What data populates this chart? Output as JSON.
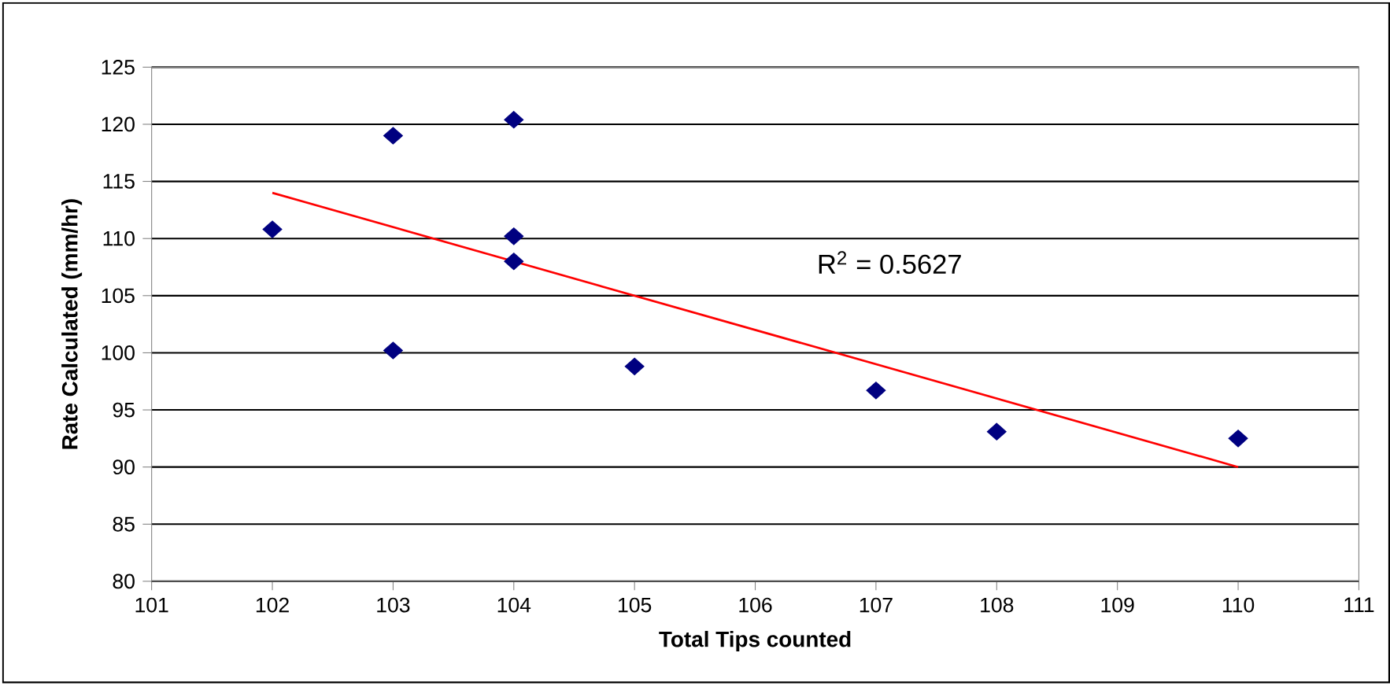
{
  "chart_data": {
    "type": "scatter",
    "xlabel": "Total Tips counted",
    "ylabel": "Rate Calculated (mm/hr)",
    "xlim": [
      101,
      111
    ],
    "xticks": [
      101,
      102,
      103,
      104,
      105,
      106,
      107,
      108,
      109,
      110,
      111
    ],
    "ylim": [
      80,
      125
    ],
    "yticks": [
      80,
      85,
      90,
      95,
      100,
      105,
      110,
      115,
      120,
      125
    ],
    "grid": "y",
    "marker": "diamond",
    "annotations": [
      "R$^{2}$ = 0.5627"
    ],
    "series": [
      {
        "color": "#000080",
        "x": [
          102,
          103,
          103,
          104,
          104,
          104,
          105,
          107,
          108,
          110
        ],
        "values": [
          110.8,
          119.0,
          100.2,
          120.4,
          110.2,
          108.0,
          98.8,
          96.7,
          93.1,
          92.5
        ]
      },
      {
        "type": "line",
        "marker": "none",
        "color": "#ff0000",
        "x": [
          102,
          110
        ],
        "values": [
          114.0,
          90.0
        ]
      }
    ]
  }
}
